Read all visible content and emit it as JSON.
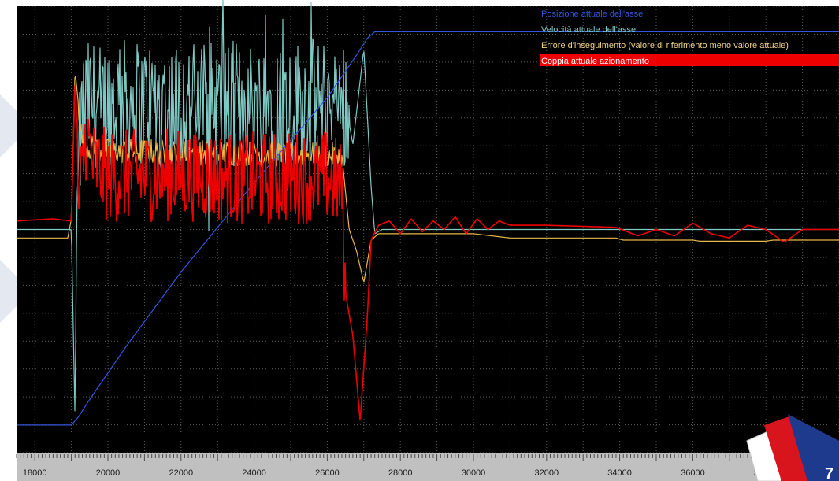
{
  "page": {
    "page_number": "7"
  },
  "chart_data": {
    "type": "line",
    "title": "",
    "xlabel": "",
    "ylabel": "",
    "grid": true,
    "legend_position": "top-right",
    "xlim": [
      17500,
      40000
    ],
    "ylim": [
      -1.05,
      1.05
    ],
    "x_ticks": [
      18000,
      20000,
      22000,
      24000,
      26000,
      28000,
      30000,
      32000,
      34000,
      36000,
      38000
    ],
    "series": [
      {
        "name": "Posizione attuale dell'asse",
        "color": "#3355dd",
        "x": [
          17500,
          19000,
          19200,
          19500,
          20500,
          22000,
          24000,
          26000,
          26800,
          27100,
          27300,
          27500,
          40000
        ],
        "y": [
          -0.92,
          -0.92,
          -0.88,
          -0.8,
          -0.55,
          -0.2,
          0.22,
          0.62,
          0.82,
          0.9,
          0.93,
          0.93,
          0.93
        ]
      },
      {
        "name": "Velocità attuale dell'asse",
        "color": "#7fc9c4",
        "x": [
          17500,
          19000,
          19100,
          19150,
          19300,
          19500,
          19800,
          20000,
          23000,
          25000,
          26500,
          26700,
          27000,
          27200,
          27300,
          27500,
          28000,
          30000,
          40000
        ],
        "y": [
          0.0,
          0.0,
          -0.9,
          0.15,
          0.55,
          0.6,
          0.58,
          0.6,
          0.59,
          0.6,
          0.6,
          0.4,
          0.85,
          0.2,
          -0.02,
          0.0,
          0.0,
          0.0,
          0.0
        ]
      },
      {
        "name": "Errore d'inseguimento (valore di riferimento meno valore attuale)",
        "color": "#e8b84a",
        "x": [
          17500,
          18900,
          19000,
          19100,
          19300,
          19600,
          20000,
          23000,
          26000,
          26400,
          26600,
          26800,
          27000,
          27200,
          27400,
          28000,
          30000,
          30500,
          31000,
          33900,
          34100,
          36000,
          36200,
          38000,
          38200,
          40000
        ],
        "y": [
          -0.04,
          -0.04,
          0.05,
          0.75,
          0.4,
          0.38,
          0.37,
          0.36,
          0.35,
          0.35,
          0.0,
          -0.1,
          -0.25,
          -0.05,
          -0.02,
          -0.02,
          -0.02,
          -0.03,
          -0.04,
          -0.04,
          -0.05,
          -0.05,
          -0.055,
          -0.055,
          -0.05,
          -0.05
        ]
      },
      {
        "name": "Coppia attuale azionamento",
        "color": "#ee0000",
        "x": [
          17500,
          18500,
          19000,
          19100,
          19200,
          19400,
          19600,
          20000,
          22000,
          24000,
          26000,
          26400,
          26500,
          26700,
          26900,
          27100,
          27200,
          27400,
          27700,
          28000,
          28300,
          28600,
          28900,
          29200,
          29500,
          29800,
          30100,
          30400,
          30700,
          31000,
          32000,
          33900,
          34500,
          35000,
          35500,
          36000,
          36500,
          37000,
          37500,
          38000,
          38500,
          39000,
          40000
        ],
        "y": [
          0.04,
          0.05,
          0.04,
          0.7,
          0.1,
          0.45,
          0.3,
          0.25,
          0.26,
          0.24,
          0.25,
          0.2,
          -0.3,
          -0.5,
          -0.9,
          -0.4,
          -0.05,
          0.02,
          0.04,
          -0.02,
          0.05,
          -0.01,
          0.04,
          0.0,
          0.06,
          -0.02,
          0.05,
          0.0,
          0.04,
          0.02,
          0.02,
          0.01,
          -0.03,
          0.0,
          -0.03,
          0.03,
          -0.02,
          -0.04,
          0.02,
          0.0,
          -0.06,
          0.0,
          0.0
        ]
      }
    ]
  }
}
